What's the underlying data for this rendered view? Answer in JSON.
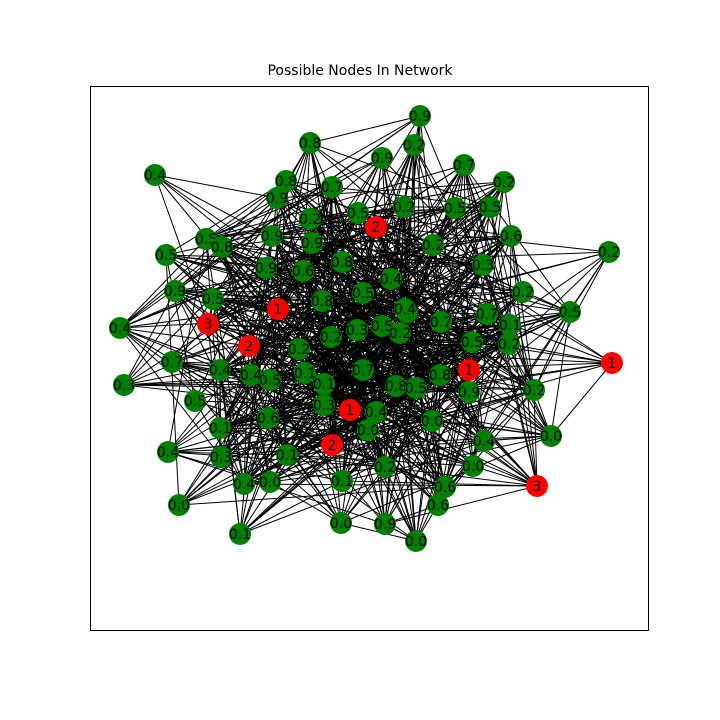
{
  "title": "Possible Nodes In Network",
  "colors": {
    "normal": "#008000",
    "highlight": "#ff0000",
    "edge": "#000000",
    "label": "#000000"
  },
  "graph": {
    "nodes": [
      {
        "label": "0.9",
        "color": "normal"
      },
      {
        "label": "0.8",
        "color": "normal"
      },
      {
        "label": "0.9",
        "color": "normal"
      },
      {
        "label": "0.2",
        "color": "normal"
      },
      {
        "label": "0.7",
        "color": "normal"
      },
      {
        "label": "0.4",
        "color": "normal"
      },
      {
        "label": "0.8",
        "color": "normal"
      },
      {
        "label": "0.9",
        "color": "normal"
      },
      {
        "label": "0.7",
        "color": "normal"
      },
      {
        "label": "2",
        "color": "highlight"
      },
      {
        "label": "0.2",
        "color": "normal"
      },
      {
        "label": "0.5",
        "color": "normal"
      },
      {
        "label": "0.2",
        "color": "normal"
      },
      {
        "label": "0.5",
        "color": "normal"
      },
      {
        "label": "0.5",
        "color": "normal"
      },
      {
        "label": "0.5",
        "color": "normal"
      },
      {
        "label": "0.8",
        "color": "normal"
      },
      {
        "label": "0.9",
        "color": "normal"
      },
      {
        "label": "0.2",
        "color": "normal"
      },
      {
        "label": "0.9",
        "color": "normal"
      },
      {
        "label": "0.8",
        "color": "normal"
      },
      {
        "label": "0.6",
        "color": "normal"
      },
      {
        "label": "0.9",
        "color": "normal"
      },
      {
        "label": "0.2",
        "color": "normal"
      },
      {
        "label": "0.3",
        "color": "normal"
      },
      {
        "label": "0.6",
        "color": "normal"
      },
      {
        "label": "0.2",
        "color": "normal"
      },
      {
        "label": "0.5",
        "color": "normal"
      },
      {
        "label": "0.4",
        "color": "normal"
      },
      {
        "label": "0.9",
        "color": "normal"
      },
      {
        "label": "0.5",
        "color": "normal"
      },
      {
        "label": "0.5",
        "color": "normal"
      },
      {
        "label": "0.2",
        "color": "normal"
      },
      {
        "label": "0.4",
        "color": "normal"
      },
      {
        "label": "1",
        "color": "highlight"
      },
      {
        "label": "0.8",
        "color": "normal"
      },
      {
        "label": "0.5",
        "color": "normal"
      },
      {
        "label": "0.7",
        "color": "normal"
      },
      {
        "label": "0.7",
        "color": "normal"
      },
      {
        "label": "0.7",
        "color": "normal"
      },
      {
        "label": "0.1",
        "color": "normal"
      },
      {
        "label": "0.4",
        "color": "normal"
      },
      {
        "label": "3",
        "color": "highlight"
      },
      {
        "label": "2",
        "color": "highlight"
      },
      {
        "label": "0.2",
        "color": "normal"
      },
      {
        "label": "0.2",
        "color": "normal"
      },
      {
        "label": "0.3",
        "color": "normal"
      },
      {
        "label": "0.5",
        "color": "normal"
      },
      {
        "label": "0.2",
        "color": "normal"
      },
      {
        "label": "0.5",
        "color": "normal"
      },
      {
        "label": "0.2",
        "color": "normal"
      },
      {
        "label": "0.4",
        "color": "normal"
      },
      {
        "label": "0.7",
        "color": "normal"
      },
      {
        "label": "0.4",
        "color": "normal"
      },
      {
        "label": "0.5",
        "color": "normal"
      },
      {
        "label": "0.1",
        "color": "normal"
      },
      {
        "label": "0.1",
        "color": "normal"
      },
      {
        "label": "0.7",
        "color": "normal"
      },
      {
        "label": "1",
        "color": "highlight"
      },
      {
        "label": "1",
        "color": "highlight"
      },
      {
        "label": "0.3",
        "color": "normal"
      },
      {
        "label": "0.5",
        "color": "normal"
      },
      {
        "label": "0.8",
        "color": "normal"
      },
      {
        "label": "0.5",
        "color": "normal"
      },
      {
        "label": "0.8",
        "color": "normal"
      },
      {
        "label": "0.9",
        "color": "normal"
      },
      {
        "label": "0.2",
        "color": "normal"
      },
      {
        "label": "0.3",
        "color": "normal"
      },
      {
        "label": "1",
        "color": "highlight"
      },
      {
        "label": "0.1",
        "color": "normal"
      },
      {
        "label": "0.6",
        "color": "normal"
      },
      {
        "label": "0.4",
        "color": "normal"
      },
      {
        "label": "0.0",
        "color": "normal"
      },
      {
        "label": "0.4",
        "color": "normal"
      },
      {
        "label": "2",
        "color": "highlight"
      },
      {
        "label": "0.1",
        "color": "normal"
      },
      {
        "label": "0.0",
        "color": "normal"
      },
      {
        "label": "0.0",
        "color": "normal"
      },
      {
        "label": "0.4",
        "color": "normal"
      },
      {
        "label": "0.3",
        "color": "normal"
      },
      {
        "label": "0.1",
        "color": "normal"
      },
      {
        "label": "0.2",
        "color": "normal"
      },
      {
        "label": "0.6",
        "color": "normal"
      },
      {
        "label": "0.6",
        "color": "normal"
      },
      {
        "label": "0.0",
        "color": "normal"
      },
      {
        "label": "0.4",
        "color": "normal"
      },
      {
        "label": "0.0",
        "color": "normal"
      },
      {
        "label": "3",
        "color": "highlight"
      },
      {
        "label": "0.1",
        "color": "normal"
      },
      {
        "label": "0.0",
        "color": "normal"
      },
      {
        "label": "0.0",
        "color": "normal"
      },
      {
        "label": "0.9",
        "color": "normal"
      },
      {
        "label": "0.0",
        "color": "normal"
      }
    ]
  }
}
